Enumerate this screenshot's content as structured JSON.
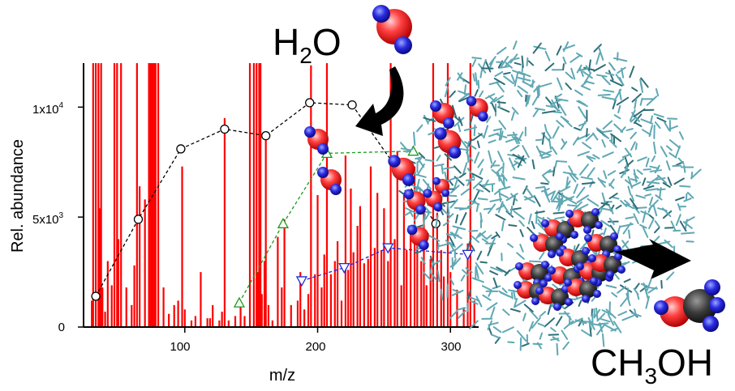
{
  "labels": {
    "water": {
      "main": "H",
      "sub": "2",
      "tail": "O"
    },
    "methanol": {
      "pre": "CH",
      "sub": "3",
      "tail": "OH"
    }
  },
  "colors": {
    "spectrum": "#ff0000",
    "oxygen": "#ff3b3b",
    "hydrogen": "#2a2ae0",
    "carbon": "#3a3a3a",
    "cluster": "#5fa8b4",
    "series_circle": "#000000",
    "series_up": "#1a9a1a",
    "series_down": "#1a2ad6"
  },
  "chart_data": {
    "type": "bar",
    "xlabel": "m/z",
    "ylabel": "Rel. abundance",
    "xlim": [
      25,
      320
    ],
    "ylim": [
      0,
      12000
    ],
    "x_ticks": [
      {
        "value": 100,
        "label": "100"
      },
      {
        "value": 200,
        "label": "200"
      },
      {
        "value": 300,
        "label": "300"
      }
    ],
    "y_ticks": [
      {
        "value": 0,
        "base": "0",
        "exp": ""
      },
      {
        "value": 5000,
        "base": "5x10",
        "exp": "3"
      },
      {
        "value": 10000,
        "base": "1x10",
        "exp": "4"
      }
    ],
    "spectrum": {
      "mz": [
        30,
        31,
        33,
        35,
        36,
        37,
        38,
        40,
        42,
        45,
        47,
        49,
        50,
        52,
        56,
        60,
        62,
        64,
        66,
        70,
        73,
        74,
        75,
        76,
        77,
        78,
        80,
        84,
        88,
        92,
        95,
        98,
        100,
        105,
        108,
        112,
        117,
        119,
        121,
        126,
        128,
        130,
        133,
        138,
        142,
        145,
        149,
        152,
        154,
        155,
        156,
        157,
        158,
        160,
        161,
        163,
        166,
        170,
        173,
        175,
        180,
        185,
        187,
        190,
        193,
        195,
        198,
        200,
        203,
        205,
        207,
        210,
        213,
        215,
        218,
        221,
        223,
        225,
        227,
        230,
        232,
        235,
        238,
        240,
        243,
        245,
        248,
        250,
        253,
        255,
        258,
        260,
        263,
        265,
        267,
        270,
        273,
        275,
        278,
        280,
        282,
        285,
        287,
        290,
        293,
        295,
        298,
        300,
        305,
        310,
        313,
        315,
        318
      ],
      "values": [
        1200,
        12000,
        12000,
        12000,
        5400,
        12000,
        1800,
        700,
        3000,
        1900,
        12000,
        12000,
        4000,
        12000,
        1800,
        1000,
        2800,
        12000,
        6400,
        5800,
        12000,
        12000,
        12000,
        12000,
        12000,
        12000,
        12000,
        1800,
        600,
        1000,
        1200,
        7300,
        800,
        300,
        500,
        2500,
        400,
        400,
        1000,
        300,
        700,
        9500,
        300,
        500,
        1100,
        500,
        12000,
        12000,
        12000,
        2500,
        12000,
        12000,
        1500,
        3000,
        8700,
        1000,
        300,
        4100,
        1800,
        4900,
        1000,
        1200,
        2500,
        800,
        1500,
        11900,
        2400,
        6000,
        1800,
        3300,
        12000,
        2400,
        3000,
        3900,
        1200,
        7800,
        2600,
        6300,
        3400,
        4600,
        5500,
        2900,
        3100,
        7300,
        3600,
        6100,
        3500,
        5400,
        3000,
        12000,
        4000,
        8000,
        1900,
        6100,
        3500,
        4600,
        7300,
        4100,
        3000,
        5500,
        1900,
        3100,
        12000,
        5200,
        3500,
        2300,
        12000,
        2500,
        1700,
        900,
        3800,
        12000,
        1200
      ]
    },
    "series": [
      {
        "marker": "circle",
        "x": [
          33,
          65,
          97,
          130,
          161,
          194,
          226,
          289
        ],
        "values": [
          1400,
          4900,
          8100,
          9000,
          8700,
          10200,
          10100,
          4700
        ]
      },
      {
        "marker": "triangle-up",
        "x": [
          141,
          174,
          207,
          272
        ],
        "values": [
          1100,
          4700,
          7900,
          8000
        ]
      },
      {
        "marker": "triangle-down",
        "x": [
          188,
          220,
          253,
          313
        ],
        "values": [
          2100,
          2700,
          3600,
          3300
        ]
      }
    ]
  }
}
